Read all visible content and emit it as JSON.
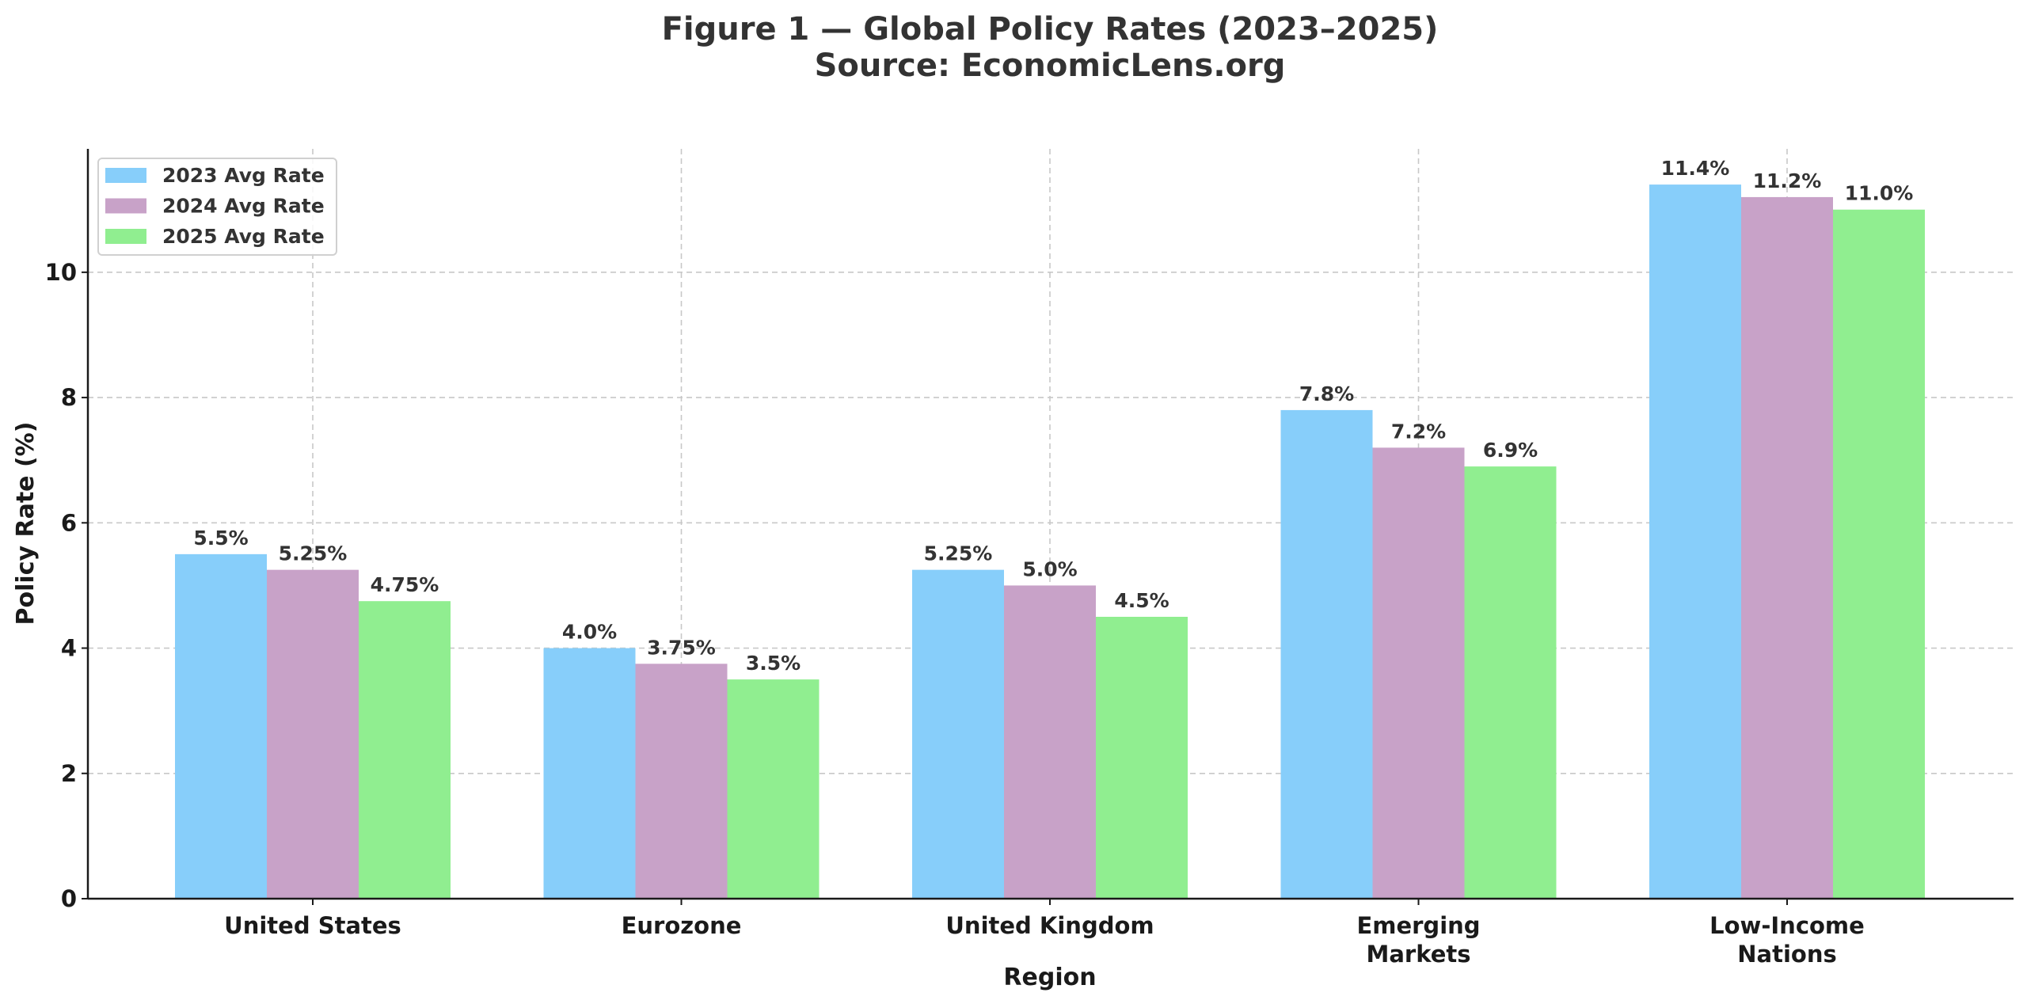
{
  "chart_data": {
    "type": "bar",
    "title": "Figure 1 — Global Policy Rates (2023–2025)",
    "subtitle": "Source: EconomicLens.org",
    "xlabel": "Region",
    "ylabel": "Policy Rate (%)",
    "categories": [
      [
        "United States"
      ],
      [
        "Eurozone"
      ],
      [
        "United Kingdom"
      ],
      [
        "Emerging",
        "Markets"
      ],
      [
        "Low-Income",
        "Nations"
      ]
    ],
    "series": [
      {
        "name": "2023 Avg Rate",
        "color": "#87CEFA",
        "values": [
          5.5,
          4.0,
          5.25,
          7.8,
          11.4
        ],
        "labels": [
          "5.5%",
          "4.0%",
          "5.25%",
          "7.8%",
          "11.4%"
        ]
      },
      {
        "name": "2024 Avg Rate",
        "color": "#C8A2C8",
        "values": [
          5.25,
          3.75,
          5.0,
          7.2,
          11.2
        ],
        "labels": [
          "5.25%",
          "3.75%",
          "5.0%",
          "7.2%",
          "11.2%"
        ]
      },
      {
        "name": "2025 Avg Rate",
        "color": "#90EE90",
        "values": [
          4.75,
          3.5,
          4.5,
          6.9,
          11.0
        ],
        "labels": [
          "4.75%",
          "3.5%",
          "4.5%",
          "6.9%",
          "11.0%"
        ]
      }
    ],
    "yticks": [
      0,
      2,
      4,
      6,
      8,
      10
    ],
    "ylim": [
      0,
      11.97
    ],
    "grid": true,
    "legend": "top-left"
  }
}
